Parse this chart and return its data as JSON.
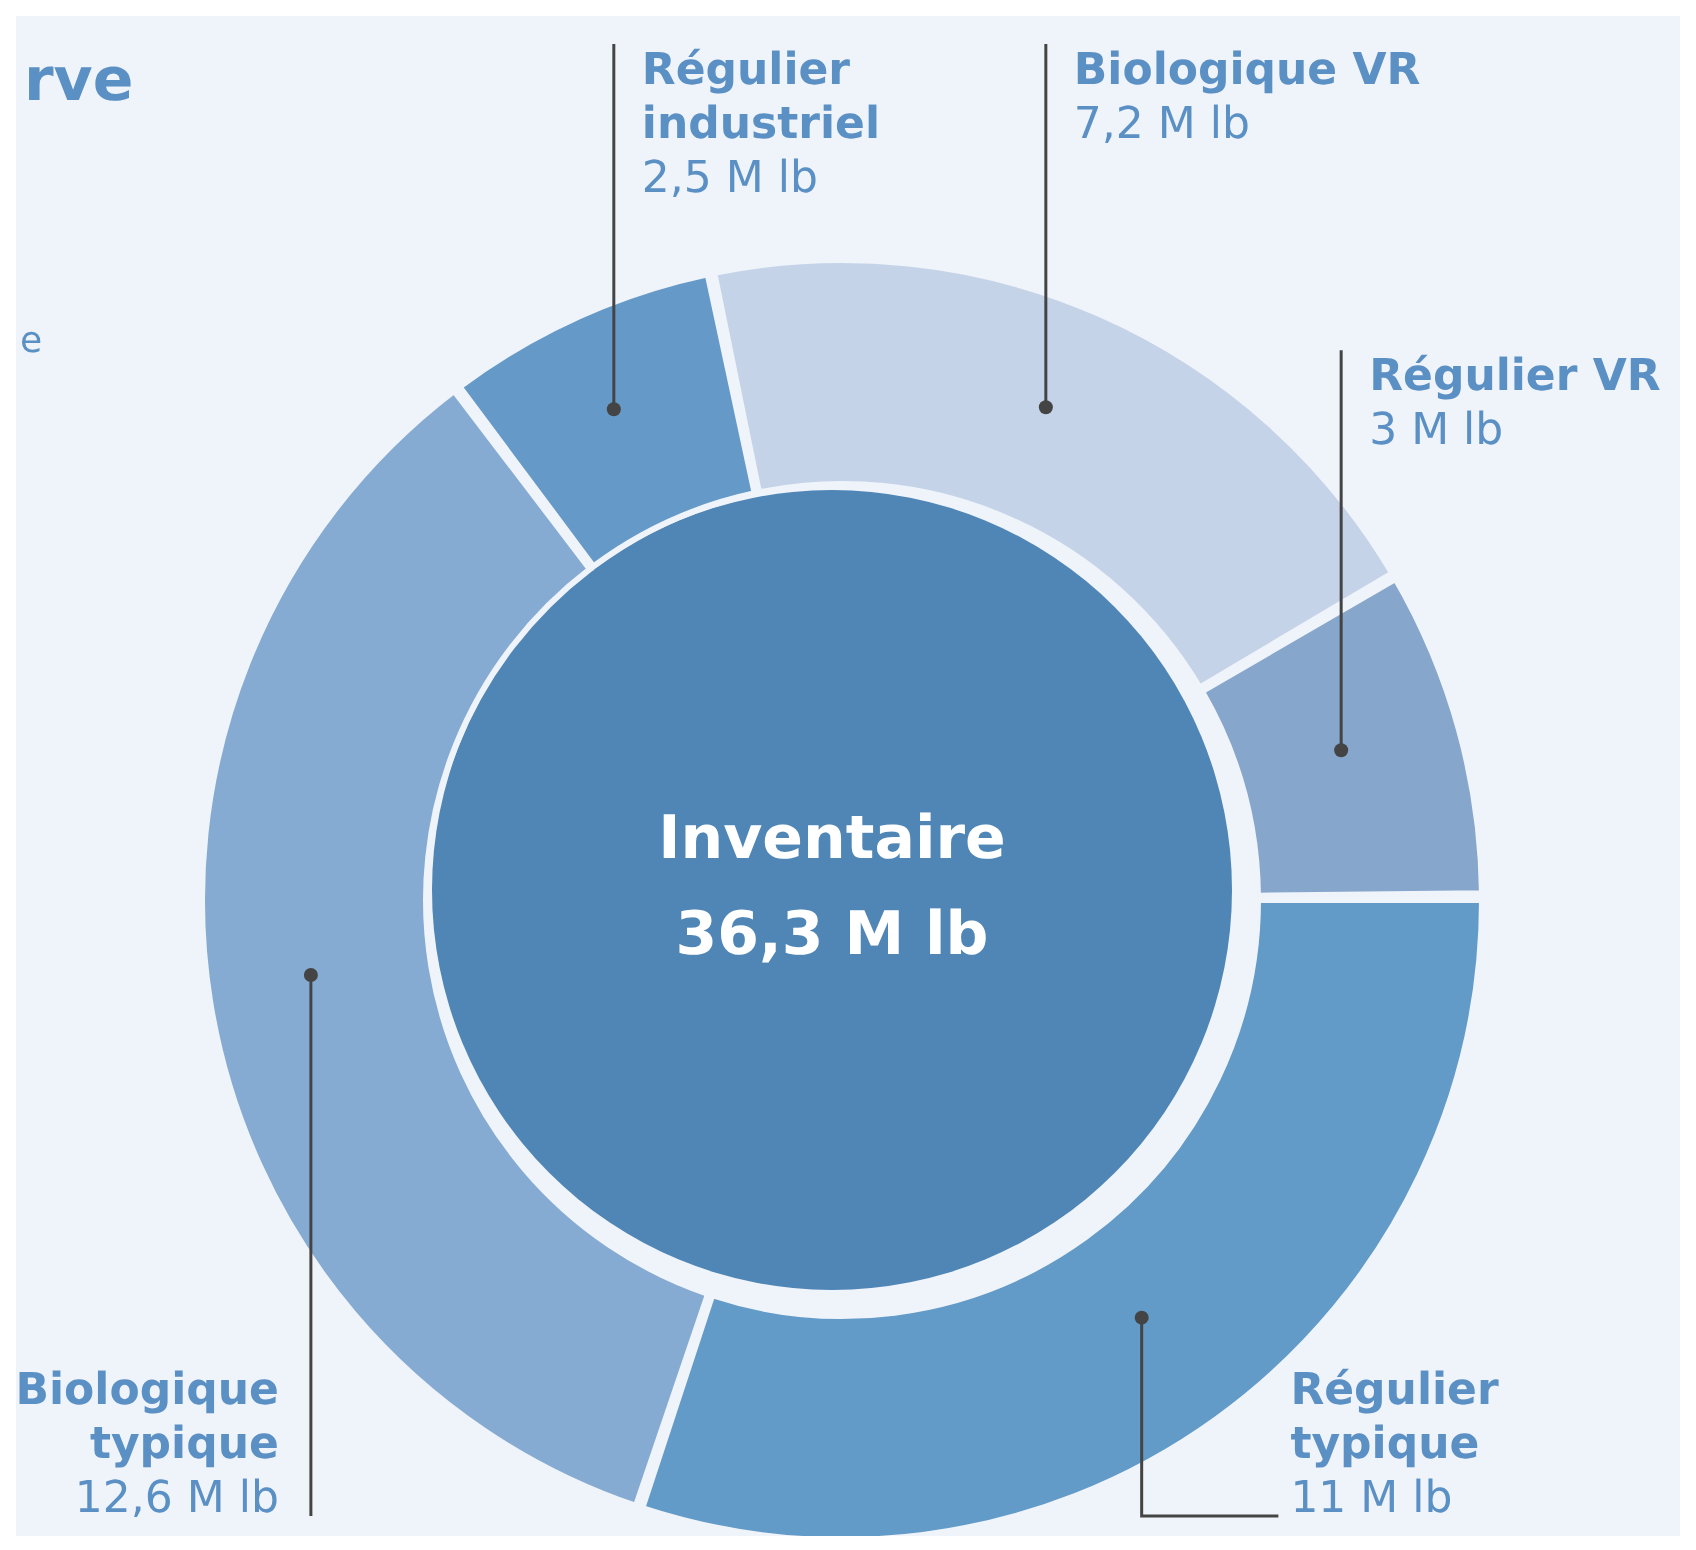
{
  "chart_data": {
    "type": "donut",
    "title": "rve",
    "categories": [
      "Régulier typique",
      "Biologique typique",
      "Régulier industriel",
      "Biologique VR",
      "Régulier VR"
    ],
    "values": [
      11,
      12.6,
      2.5,
      7.2,
      3
    ],
    "colors": [
      "#629ac8",
      "#86abd2",
      "#6499c8",
      "#c5d3e8",
      "#86a6cc"
    ],
    "value_labels": [
      "11 M lb",
      "12,6 M lb",
      "2,5 M lb",
      "7,2 M lb",
      "3 M lb"
    ],
    "annotations": [
      "Inventaire",
      "36,3 M lb",
      "e"
    ]
  }
}
